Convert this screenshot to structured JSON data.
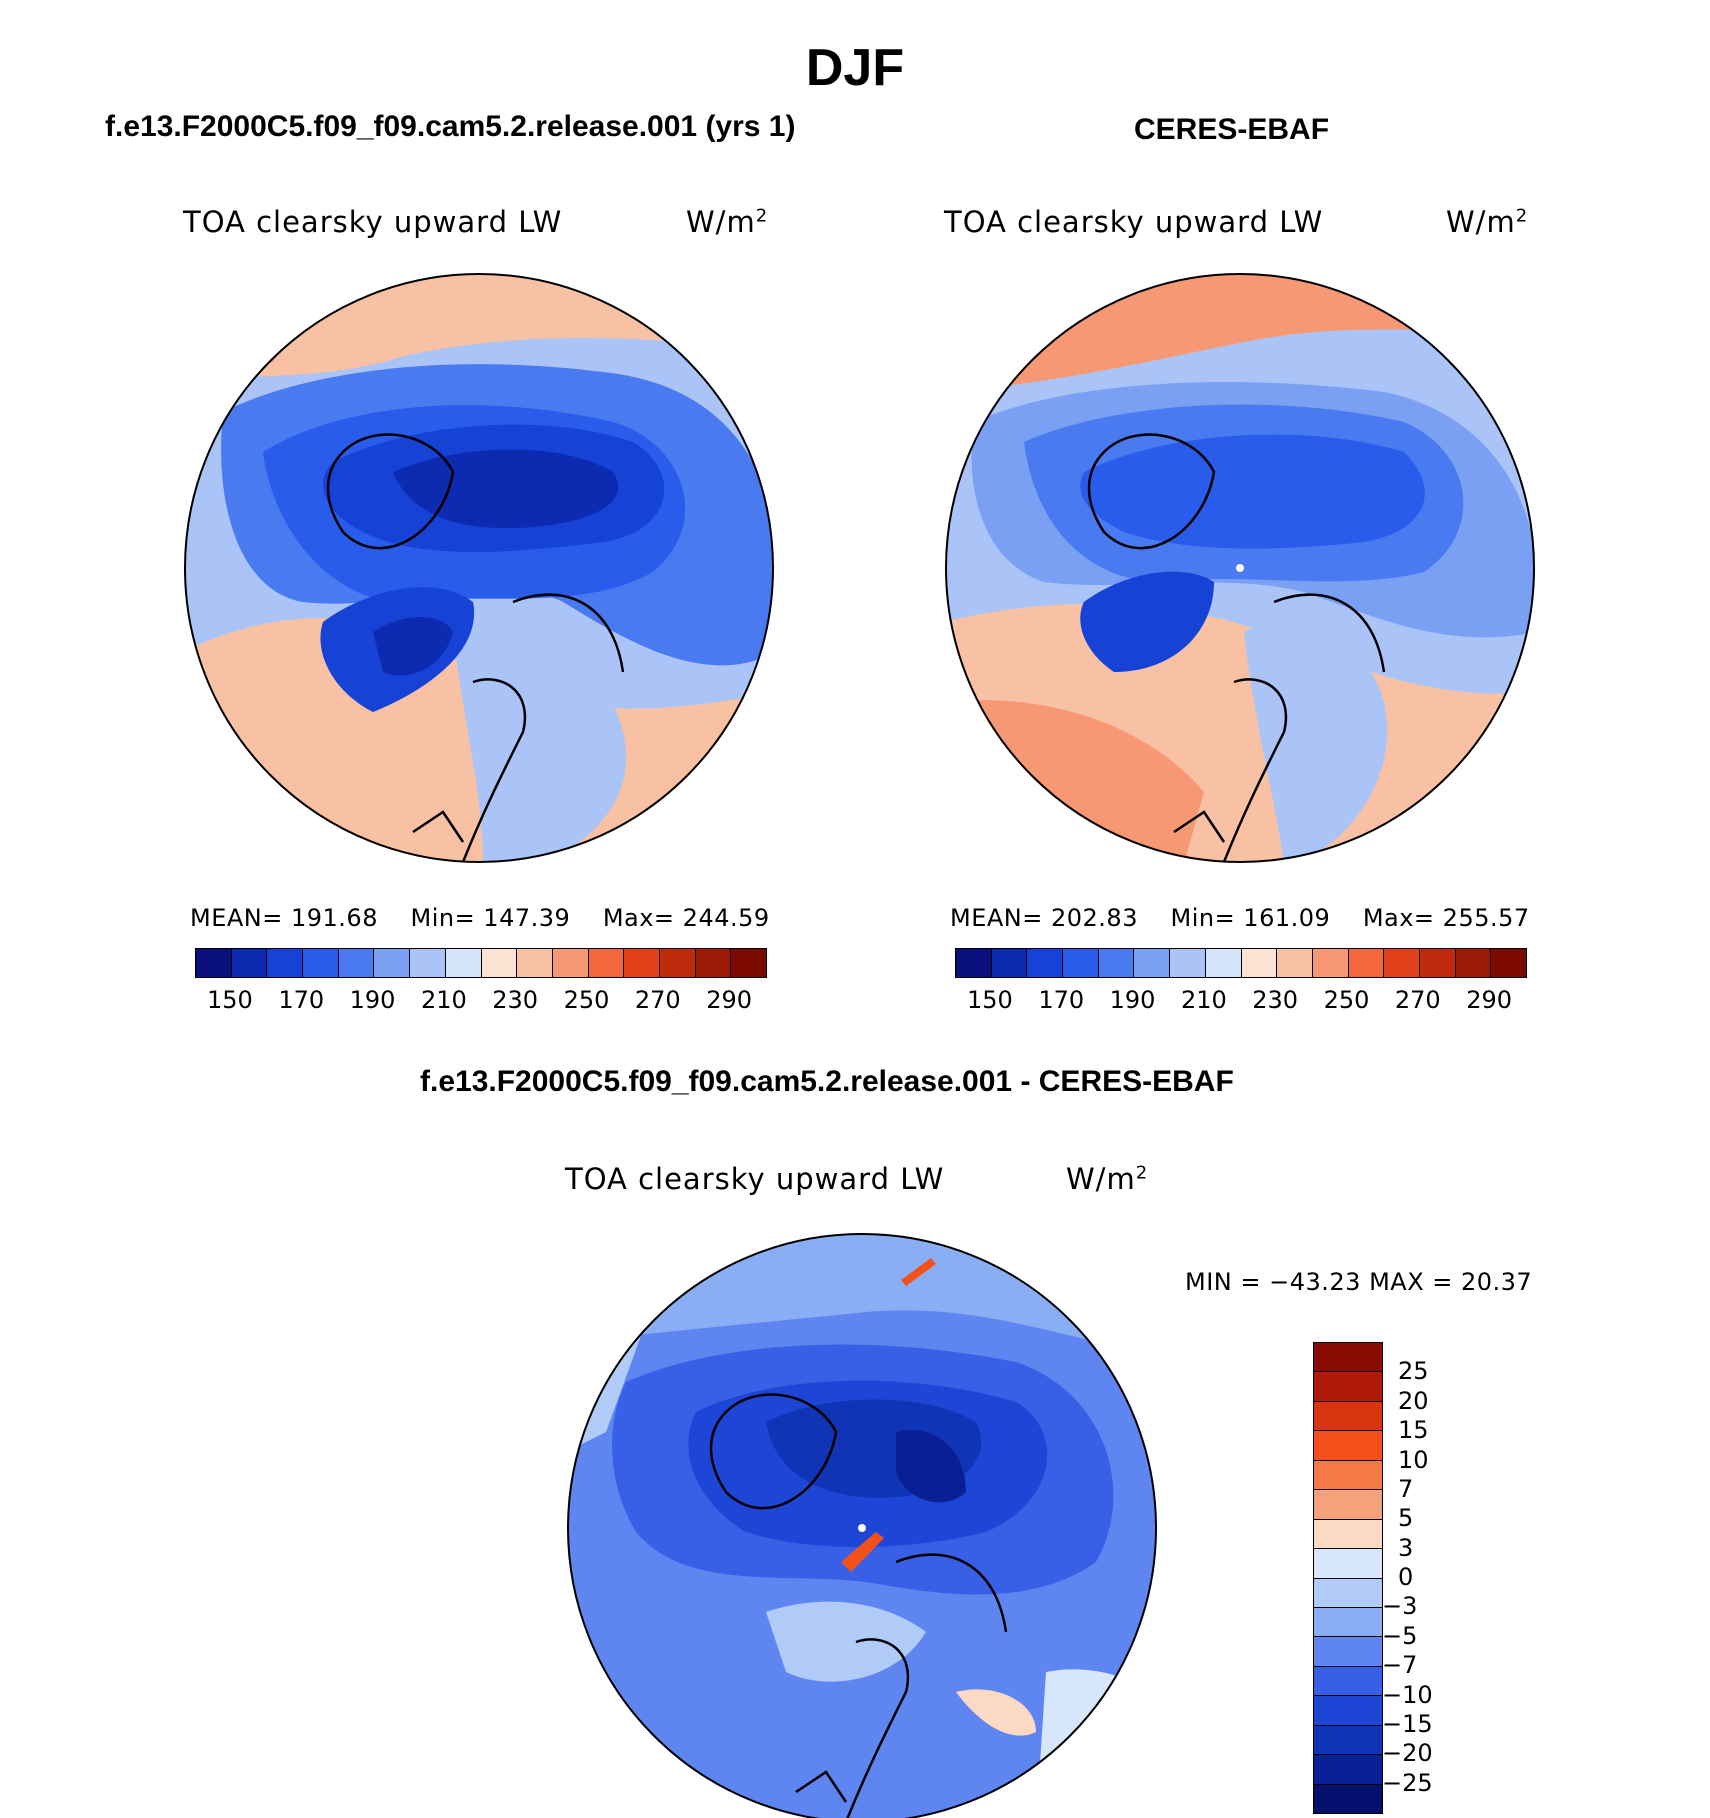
{
  "figure": {
    "title": "DJF"
  },
  "chart_data": [
    {
      "type": "heatmap",
      "projection": "north polar stereographic",
      "title": "f.e13.F2000C5.f09_f09.cam5.2.release.001 (yrs 1)",
      "variable": "TOA clearsky upward LW",
      "units_base": "W/m",
      "units_exp": "2",
      "stats": {
        "mean": "MEAN= 191.68",
        "min": "Min= 147.39",
        "max": "Max= 244.59"
      },
      "colorbar": {
        "ticks": [
          "150",
          "170",
          "190",
          "210",
          "230",
          "250",
          "270",
          "290"
        ],
        "levels": [
          150,
          160,
          170,
          180,
          190,
          200,
          210,
          220,
          230,
          240,
          250,
          260,
          270,
          280,
          290
        ],
        "colors": [
          "#0a0f7e",
          "#0c2bb0",
          "#1642d6",
          "#2a5cec",
          "#4a7af0",
          "#7aa0f4",
          "#aac4f8",
          "#d4e4fb",
          "#fbe2d2",
          "#f9c1a4",
          "#f69874",
          "#f4683d",
          "#e0401a",
          "#c02a0c",
          "#9a1a06",
          "#7a0a02"
        ]
      }
    },
    {
      "type": "heatmap",
      "projection": "north polar stereographic",
      "title": "CERES-EBAF",
      "variable": "TOA clearsky upward LW",
      "units_base": "W/m",
      "units_exp": "2",
      "stats": {
        "mean": "MEAN= 202.83",
        "min": "Min= 161.09",
        "max": "Max= 255.57"
      },
      "colorbar": {
        "ticks": [
          "150",
          "170",
          "190",
          "210",
          "230",
          "250",
          "270",
          "290"
        ],
        "levels": [
          150,
          160,
          170,
          180,
          190,
          200,
          210,
          220,
          230,
          240,
          250,
          260,
          270,
          280,
          290
        ],
        "colors": [
          "#0a0f7e",
          "#0c2bb0",
          "#1642d6",
          "#2a5cec",
          "#4a7af0",
          "#7aa0f4",
          "#aac4f8",
          "#d4e4fb",
          "#fbe2d2",
          "#f9c1a4",
          "#f69874",
          "#f4683d",
          "#e0401a",
          "#c02a0c",
          "#9a1a06",
          "#7a0a02"
        ]
      }
    },
    {
      "type": "heatmap",
      "projection": "north polar stereographic",
      "title": "f.e13.F2000C5.f09_f09.cam5.2.release.001 - CERES-EBAF",
      "variable": "TOA clearsky upward LW",
      "units_base": "W/m",
      "units_exp": "2",
      "stats": {
        "min": "MIN = −43.23",
        "max": "MAX =  20.37"
      },
      "colorbar": {
        "ticks": [
          "25",
          "20",
          "15",
          "10",
          "7",
          "5",
          "3",
          "0",
          "−3",
          "−5",
          "−7",
          "−10",
          "−15",
          "−20",
          "−25"
        ],
        "levels": [
          25,
          20,
          15,
          10,
          7,
          5,
          3,
          0,
          -3,
          -5,
          -7,
          -10,
          -15,
          -20,
          -25
        ],
        "colors": [
          "#8a0a04",
          "#b01a08",
          "#d8340f",
          "#f4501a",
          "#f47a48",
          "#f4a27c",
          "#fbd9c2",
          "#d6e6fb",
          "#b0cbf7",
          "#8aaef4",
          "#5f86f0",
          "#3860e6",
          "#1e46d6",
          "#1034b6",
          "#0a1f94",
          "#060f6e"
        ]
      }
    }
  ]
}
